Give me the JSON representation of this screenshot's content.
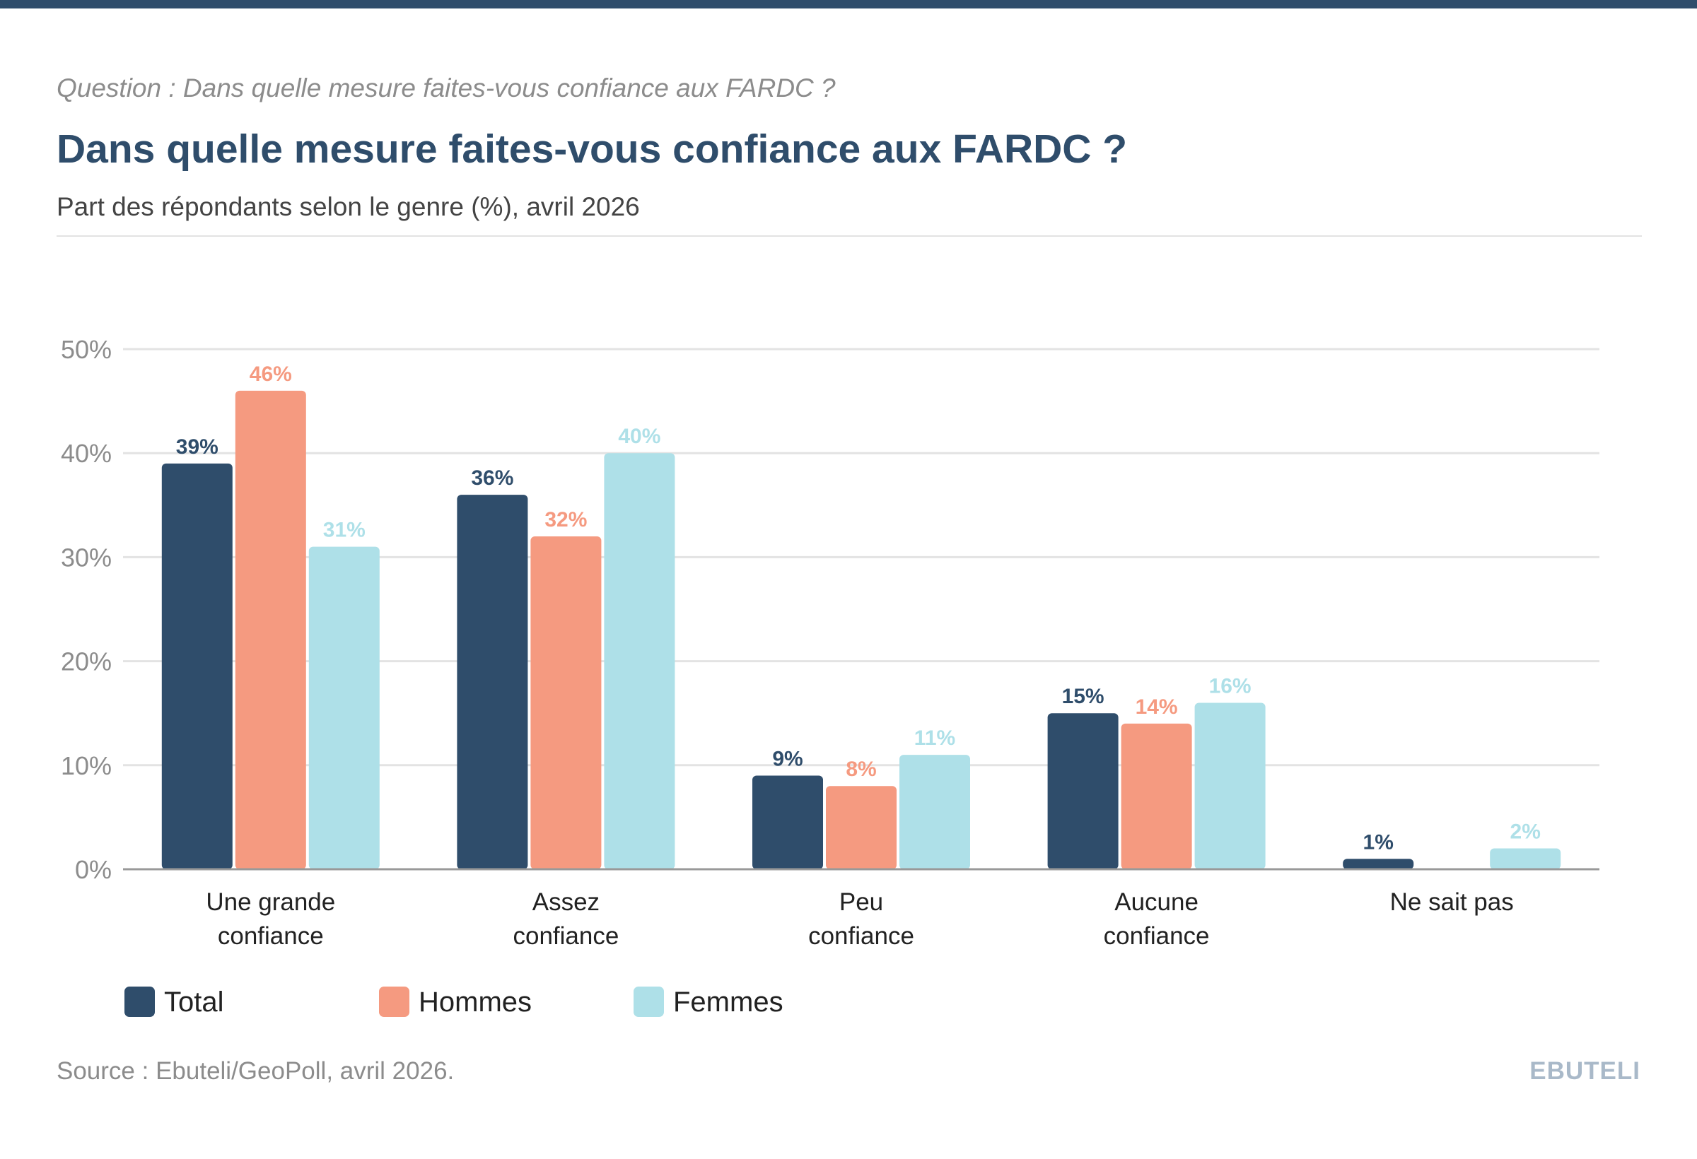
{
  "header": {
    "question": "Question : Dans quelle mesure faites-vous confiance aux FARDC ?",
    "title": "Dans quelle mesure faites-vous confiance aux FARDC ?",
    "subtitle": "Part des répondants selon le genre (%), avril 2026"
  },
  "footer": {
    "source": "Source : Ebuteli/GeoPoll, avril 2026.",
    "brand": "EBUTELI"
  },
  "colors": {
    "Total": "#2f4d6b",
    "Hommes": "#f59a80",
    "Femmes": "#aee0e8",
    "grid": "#e3e3e3",
    "axis": "#999999",
    "tick": "#8c8c8c",
    "category": "#222222"
  },
  "chart_data": {
    "type": "bar",
    "categories": [
      [
        "Une grande",
        "confiance"
      ],
      [
        "Assez",
        "confiance"
      ],
      [
        "Peu",
        "confiance"
      ],
      [
        "Aucune",
        "confiance"
      ],
      [
        "Ne sait pas"
      ]
    ],
    "series": [
      {
        "name": "Total",
        "values": [
          39,
          36,
          9,
          15,
          1
        ],
        "labels": [
          "39%",
          "36%",
          "9%",
          "15%",
          "1%"
        ]
      },
      {
        "name": "Hommes",
        "values": [
          46,
          32,
          8,
          14,
          0
        ],
        "labels": [
          "46%",
          "32%",
          "8%",
          "14%",
          ""
        ]
      },
      {
        "name": "Femmes",
        "values": [
          31,
          40,
          11,
          16,
          2
        ],
        "labels": [
          "31%",
          "40%",
          "11%",
          "16%",
          "2%"
        ]
      }
    ],
    "yticks": [
      "0%",
      "10%",
      "20%",
      "30%",
      "40%",
      "50%"
    ],
    "ylim": [
      0,
      50
    ],
    "grid": true,
    "legend": "bottom-left"
  }
}
